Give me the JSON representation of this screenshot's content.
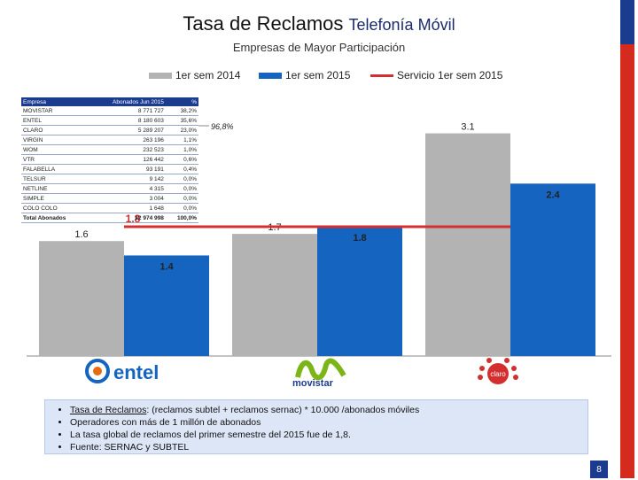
{
  "header": {
    "title_main": "Tasa de Reclamos",
    "title_sub": "Telefonía Móvil",
    "subtitle": "Empresas de Mayor Participación"
  },
  "legend": {
    "series1": "1er sem 2014",
    "series2": "1er sem 2015",
    "line": "Servicio 1er sem 2015"
  },
  "colors": {
    "series1": "#b3b3b3",
    "series2": "#1565c0",
    "line": "#d32f2f",
    "flag_red": "#d52b1e",
    "flag_blue": "#1b3b8f"
  },
  "table": {
    "headers": [
      "Empresa",
      "Abonados Jun 2015",
      "%"
    ],
    "rows": [
      [
        "MOVISTAR",
        "8 771 727",
        "38,2%"
      ],
      [
        "ENTEL",
        "8 180 603",
        "35,6%"
      ],
      [
        "CLARO",
        "5 289 207",
        "23,0%"
      ],
      [
        "VIRGIN",
        "263 196",
        "1,1%"
      ],
      [
        "WOM",
        "232 523",
        "1,0%"
      ],
      [
        "VTR",
        "126 442",
        "0,6%"
      ],
      [
        "FALABELLA",
        "93 191",
        "0,4%"
      ],
      [
        "TELSUR",
        "9 142",
        "0,0%"
      ],
      [
        "NETLINE",
        "4 315",
        "0,0%"
      ],
      [
        "SIMPLE",
        "3 004",
        "0,0%"
      ],
      [
        "COLO COLO",
        "1 648",
        "0,0%"
      ],
      [
        "Total Abonados",
        "22 974 998",
        "100,0%"
      ]
    ]
  },
  "share_label": "96,8%",
  "chart_data": {
    "type": "bar",
    "categories": [
      "entel",
      "movistar",
      "claro"
    ],
    "series": [
      {
        "name": "1er sem 2014",
        "values": [
          1.6,
          1.7,
          3.1
        ],
        "labels": [
          "1.6",
          "1.7",
          "3.1"
        ]
      },
      {
        "name": "1er sem 2015",
        "values": [
          1.4,
          1.8,
          2.4
        ],
        "labels": [
          "1.4",
          "1.8",
          "2.4"
        ]
      }
    ],
    "line": {
      "name": "Servicio 1er sem 2015",
      "value": 1.8,
      "label": "1.8"
    },
    "ylim": [
      0,
      3.6
    ],
    "grid": false,
    "legend": "top"
  },
  "logos": {
    "entel": "entel",
    "movistar": "movistar",
    "claro": "claro"
  },
  "notes": {
    "n1_term": "Tasa de Reclamos",
    "n1_rest": ": (reclamos subtel + reclamos sernac) * 10.000 /abonados móviles",
    "n2": "Operadores con más de 1 millón de abonados",
    "n3": "La tasa global de reclamos del primer semestre del 2015 fue de 1,8.",
    "n4": "Fuente: SERNAC y SUBTEL"
  },
  "page_number": "8"
}
